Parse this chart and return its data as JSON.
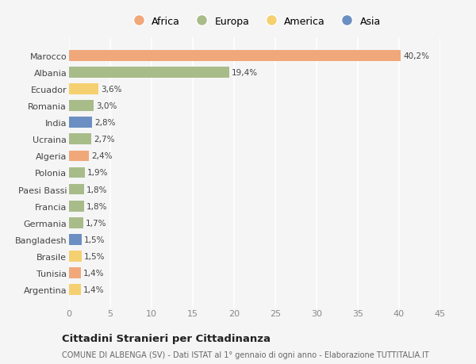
{
  "countries": [
    "Argentina",
    "Tunisia",
    "Brasile",
    "Bangladesh",
    "Germania",
    "Francia",
    "Paesi Bassi",
    "Polonia",
    "Algeria",
    "Ucraina",
    "India",
    "Romania",
    "Ecuador",
    "Albania",
    "Marocco"
  ],
  "values": [
    1.4,
    1.4,
    1.5,
    1.5,
    1.7,
    1.8,
    1.8,
    1.9,
    2.4,
    2.7,
    2.8,
    3.0,
    3.6,
    19.4,
    40.2
  ],
  "labels": [
    "1,4%",
    "1,4%",
    "1,5%",
    "1,5%",
    "1,7%",
    "1,8%",
    "1,8%",
    "1,9%",
    "2,4%",
    "2,7%",
    "2,8%",
    "3,0%",
    "3,6%",
    "19,4%",
    "40,2%"
  ],
  "continents": [
    "America",
    "Africa",
    "America",
    "Asia",
    "Europa",
    "Europa",
    "Europa",
    "Europa",
    "Africa",
    "Europa",
    "Asia",
    "Europa",
    "America",
    "Europa",
    "Africa"
  ],
  "colors": {
    "Africa": "#F0A87A",
    "Europa": "#A8BC8A",
    "America": "#F5D070",
    "Asia": "#6B8FC2"
  },
  "bg_color": "#F5F5F5",
  "grid_color": "#FFFFFF",
  "title": "Cittadini Stranieri per Cittadinanza",
  "subtitle": "COMUNE DI ALBENGA (SV) - Dati ISTAT al 1° gennaio di ogni anno - Elaborazione TUTTITALIA.IT",
  "xlim": [
    0,
    45
  ],
  "xticks": [
    0,
    5,
    10,
    15,
    20,
    25,
    30,
    35,
    40,
    45
  ],
  "legend_order": [
    "Africa",
    "Europa",
    "America",
    "Asia"
  ]
}
